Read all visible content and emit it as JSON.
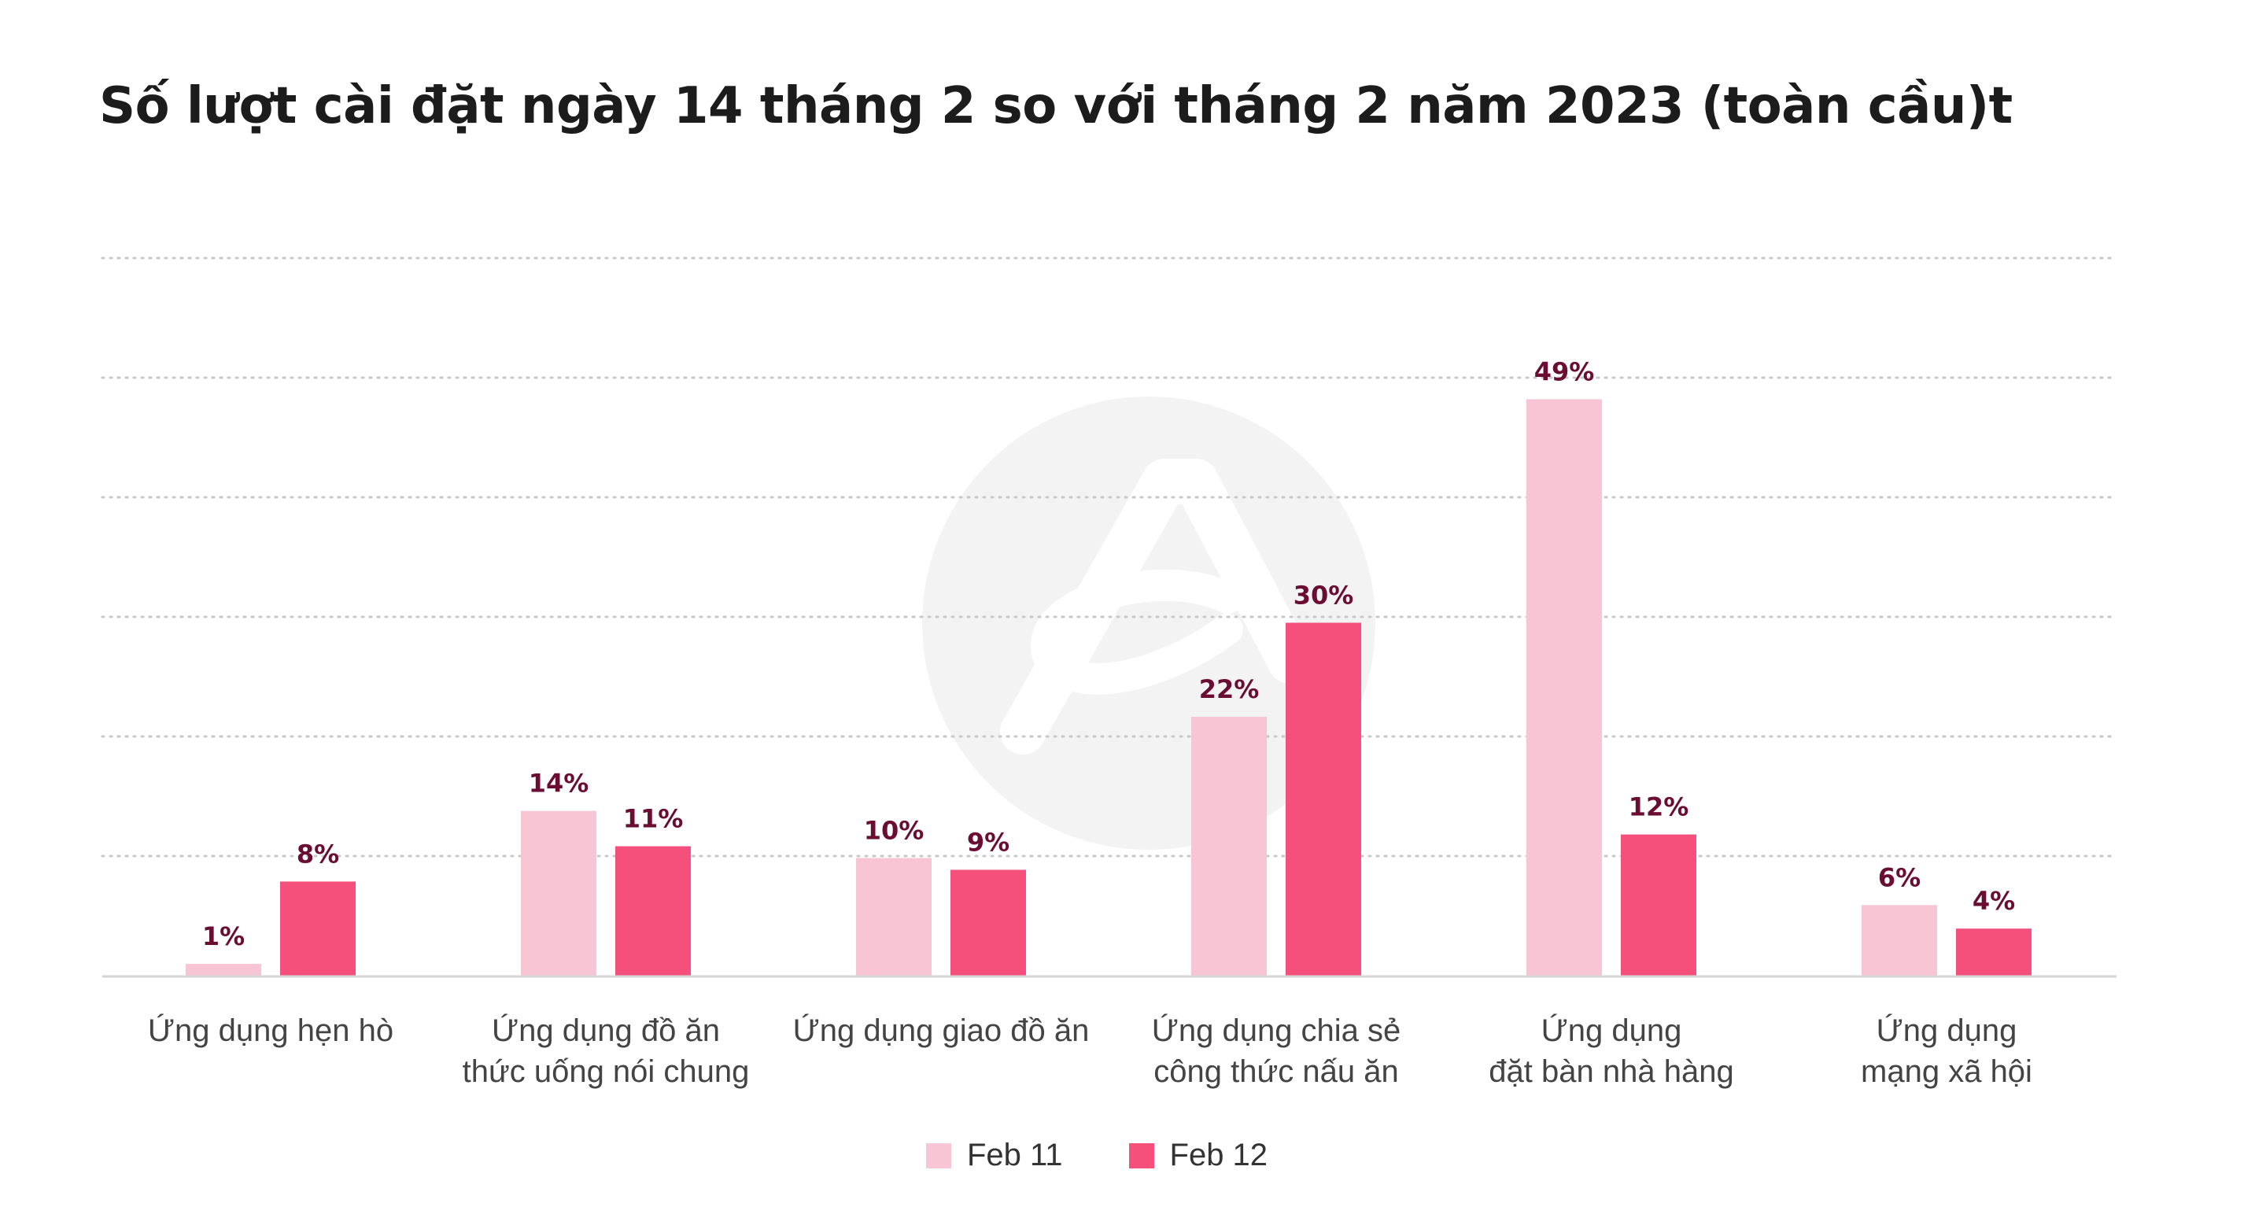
{
  "chart_data": {
    "type": "bar",
    "title": "Số lượt cài đặt ngày 14 tháng 2 so với tháng 2 năm 2023 (toàn cầu)t",
    "categories": [
      [
        "Ứng dụng hẹn hò"
      ],
      [
        "Ứng dụng đồ ăn",
        "thức uống nói chung"
      ],
      [
        "Ứng dụng giao đồ ăn"
      ],
      [
        "Ứng dụng chia sẻ",
        "công thức nấu ăn"
      ],
      [
        "Ứng dụng",
        "đặt bàn nhà hàng"
      ],
      [
        "Ứng dụng",
        "mạng xã hội"
      ]
    ],
    "series": [
      {
        "name": "Feb 11",
        "color": "#f7c5d4",
        "values": [
          1,
          14,
          10,
          22,
          49,
          6
        ],
        "labels": [
          "1%",
          "14%",
          "10%",
          "22%",
          "49%",
          "6%"
        ]
      },
      {
        "name": "Feb 12",
        "color": "#f5507b",
        "values": [
          8,
          11,
          9,
          30,
          12,
          4
        ],
        "labels": [
          "8%",
          "11%",
          "9%",
          "30%",
          "12%",
          "4%"
        ]
      }
    ],
    "ylim": [
      0,
      61
    ],
    "grid": true,
    "legend_position": "bottom-center",
    "value_label_color": "#6b0d33"
  }
}
